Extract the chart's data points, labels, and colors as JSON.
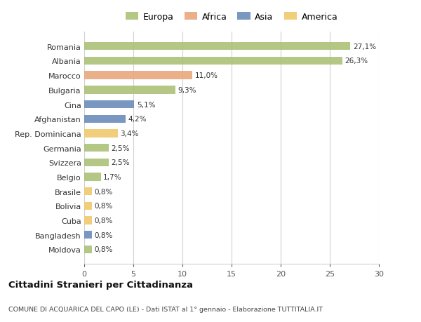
{
  "categories": [
    "Romania",
    "Albania",
    "Marocco",
    "Bulgaria",
    "Cina",
    "Afghanistan",
    "Rep. Dominicana",
    "Germania",
    "Svizzera",
    "Belgio",
    "Brasile",
    "Bolivia",
    "Cuba",
    "Bangladesh",
    "Moldova"
  ],
  "values": [
    27.1,
    26.3,
    11.0,
    9.3,
    5.1,
    4.2,
    3.4,
    2.5,
    2.5,
    1.7,
    0.8,
    0.8,
    0.8,
    0.8,
    0.8
  ],
  "labels": [
    "27,1%",
    "26,3%",
    "11,0%",
    "9,3%",
    "5,1%",
    "4,2%",
    "3,4%",
    "2,5%",
    "2,5%",
    "1,7%",
    "0,8%",
    "0,8%",
    "0,8%",
    "0,8%",
    "0,8%"
  ],
  "continents": [
    "Europa",
    "Europa",
    "Africa",
    "Europa",
    "Asia",
    "Asia",
    "America",
    "Europa",
    "Europa",
    "Europa",
    "America",
    "America",
    "America",
    "Asia",
    "Europa"
  ],
  "colors": {
    "Europa": "#adc178",
    "Africa": "#e8a87c",
    "Asia": "#6b8cba",
    "America": "#f0c96e"
  },
  "legend_order": [
    "Europa",
    "Africa",
    "Asia",
    "America"
  ],
  "background_color": "#ffffff",
  "grid_color": "#d0d0d0",
  "title": "Cittadini Stranieri per Cittadinanza",
  "subtitle": "COMUNE DI ACQUARICA DEL CAPO (LE) - Dati ISTAT al 1° gennaio - Elaborazione TUTTITALIA.IT",
  "xlim": [
    0,
    30
  ],
  "xticks": [
    0,
    5,
    10,
    15,
    20,
    25,
    30
  ]
}
